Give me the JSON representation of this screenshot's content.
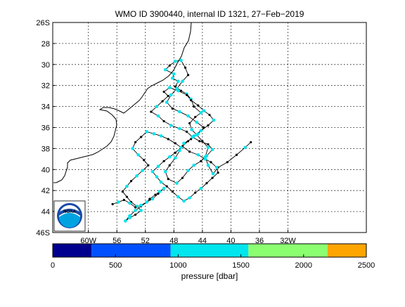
{
  "chart_data": {
    "type": "scatter",
    "title": "WMO ID 3900440, internal ID 1321, 27−Feb−2019",
    "xlim": [
      -65,
      -21
    ],
    "ylim": [
      -46,
      -26
    ],
    "grid": true,
    "x_tick_values": [
      -60,
      -56,
      -52,
      -48,
      -44,
      -40,
      -36,
      -32
    ],
    "x_tick_labels": [
      "60W",
      "56",
      "52",
      "48",
      "44",
      "40",
      "36",
      "32W"
    ],
    "y_tick_values": [
      -26,
      -28,
      -30,
      -32,
      -34,
      -36,
      -38,
      -40,
      -42,
      -44,
      -46
    ],
    "y_tick_labels": [
      "26S",
      "28",
      "30",
      "32",
      "34",
      "36",
      "38",
      "40",
      "42",
      "44",
      "46S"
    ],
    "colors": {
      "track_line": "#000000",
      "coast_line": "#000000",
      "grid": "#000000",
      "profile_fill": "#00e5ee"
    },
    "logo": {
      "text": "NOAA",
      "outer": "#1a4aa8",
      "inner": "#00a3e0"
    },
    "track": {
      "lon": [
        -37.2,
        -38.0,
        -39.2,
        -40.5,
        -41.8,
        -42.5,
        -43.2,
        -43.6,
        -43.2,
        -44.0,
        -44.8,
        -45.5,
        -45.8,
        -45.0,
        -44.2,
        -45.2,
        -45.6,
        -46.2,
        -47.0,
        -47.8,
        -47.4,
        -48.2,
        -48.0,
        -49.2,
        -48.6,
        -47.8,
        -47.0,
        -46.4,
        -46.0,
        -46.8,
        -47.6,
        -48.4,
        -49.0,
        -48.2,
        -47.2,
        -46.0,
        -44.8,
        -43.8,
        -44.6,
        -45.6,
        -46.6,
        -47.2,
        -47.8,
        -48.6,
        -49.2,
        -48.8,
        -47.6,
        -46.8,
        -46.0,
        -45.2,
        -44.2,
        -43.4,
        -42.6,
        -43.2,
        -44.4,
        -45.4,
        -46.2,
        -47.2,
        -48.4,
        -49.4,
        -50.2,
        -51.2,
        -50.4,
        -49.6,
        -48.8,
        -49.4,
        -48.6,
        -47.4,
        -46.2,
        -45.6,
        -44.6,
        -43.8,
        -43.0,
        -42.4,
        -43.2,
        -44.2,
        -45.2,
        -46.0,
        -46.8,
        -45.8,
        -44.6,
        -43.6,
        -42.8,
        -42.0,
        -41.8,
        -42.6,
        -43.4,
        -44.2,
        -45.0,
        -45.8,
        -46.6,
        -47.4,
        -48.2,
        -49.0,
        -49.8,
        -50.4,
        -51.0,
        -50.2,
        -49.4,
        -48.6,
        -47.8,
        -47.0,
        -47.8,
        -48.8,
        -49.8,
        -50.8,
        -51.8,
        -52.6,
        -53.4,
        -53.8,
        -53.0,
        -52.2,
        -51.6,
        -52.4,
        -53.2,
        -54.0,
        -54.6,
        -55.2,
        -54.6,
        -54.0,
        -53.2,
        -52.6,
        -53.4,
        -54.2,
        -54.8,
        -54.2,
        -53.4,
        -52.6,
        -51.8,
        -51.4,
        -50.6,
        -50.0,
        -49.4,
        -50.2,
        -51.0,
        -51.8,
        -52.6,
        -53.4,
        -54.2,
        -55.0,
        -55.8,
        -56.6
      ],
      "lat": [
        -37.4,
        -37.9,
        -38.6,
        -39.3,
        -39.8,
        -40.4,
        -39.6,
        -38.8,
        -37.9,
        -37.3,
        -36.7,
        -36.2,
        -35.6,
        -35.0,
        -34.6,
        -34.0,
        -33.3,
        -32.8,
        -32.5,
        -32.1,
        -31.6,
        -31.3,
        -30.9,
        -30.5,
        -30.1,
        -29.7,
        -29.6,
        -30.3,
        -31.0,
        -31.6,
        -32.3,
        -32.9,
        -33.6,
        -34.2,
        -34.5,
        -34.9,
        -35.5,
        -36.0,
        -36.6,
        -37.1,
        -37.5,
        -38.2,
        -38.9,
        -39.6,
        -40.2,
        -40.9,
        -41.3,
        -40.8,
        -40.1,
        -39.6,
        -39.2,
        -38.7,
        -38.1,
        -37.6,
        -37.3,
        -36.9,
        -36.4,
        -36.1,
        -35.8,
        -35.4,
        -34.9,
        -34.5,
        -34.0,
        -33.5,
        -33.0,
        -32.6,
        -32.2,
        -32.5,
        -32.9,
        -33.4,
        -33.9,
        -34.4,
        -34.8,
        -35.3,
        -35.8,
        -36.3,
        -36.8,
        -37.3,
        -37.8,
        -38.3,
        -38.6,
        -39.0,
        -39.3,
        -39.8,
        -40.3,
        -40.8,
        -41.3,
        -41.8,
        -42.2,
        -42.7,
        -43.0,
        -42.6,
        -42.1,
        -41.6,
        -41.2,
        -40.7,
        -40.2,
        -39.7,
        -39.2,
        -38.8,
        -38.4,
        -37.9,
        -37.5,
        -37.1,
        -36.8,
        -36.6,
        -36.4,
        -36.9,
        -37.4,
        -38.0,
        -38.6,
        -39.1,
        -39.6,
        -40.1,
        -40.6,
        -41.1,
        -41.6,
        -42.1,
        -42.6,
        -43.1,
        -43.5,
        -43.9,
        -44.3,
        -44.6,
        -44.9,
        -44.4,
        -43.9,
        -43.5,
        -43.1,
        -42.8,
        -42.4,
        -42.1,
        -41.8,
        -42.3,
        -42.8,
        -43.1,
        -43.4,
        -43.6,
        -43.2,
        -42.9,
        -43.1,
        -43.3
      ],
      "pressure": [
        0,
        1200,
        0,
        0,
        0,
        1200,
        1200,
        1200,
        1200,
        0,
        1200,
        1200,
        0,
        0,
        1200,
        0,
        1200,
        1200,
        0,
        0,
        1200,
        1200,
        1200,
        1200,
        0,
        1200,
        1200,
        0,
        0,
        1200,
        1200,
        1200,
        1200,
        0,
        1200,
        1200,
        1200,
        0,
        1200,
        0,
        1200,
        1200,
        1200,
        0,
        1200,
        0,
        1200,
        0,
        1200,
        1200,
        0,
        1200,
        1200,
        0,
        0,
        1200,
        0,
        1200,
        1200,
        0,
        1200,
        0,
        1200,
        0,
        0,
        0,
        1200,
        1200,
        0,
        0,
        0,
        1200,
        0,
        1200,
        0,
        1200,
        1200,
        0,
        0,
        0,
        1200,
        1200,
        0,
        1200,
        0,
        0,
        0,
        1200,
        0,
        1200,
        1200,
        1200,
        0,
        0,
        1200,
        1200,
        1200,
        1200,
        0,
        1200,
        0,
        1200,
        0,
        0,
        1200,
        1200,
        1200,
        0,
        0,
        1200,
        1200,
        0,
        0,
        1200,
        1200,
        0,
        1200,
        0,
        0,
        0,
        1200,
        1200,
        0,
        1200,
        1200,
        1200,
        1200,
        0,
        0,
        0,
        0,
        1200,
        1200,
        0,
        1200,
        1200,
        1200,
        0,
        1200,
        0,
        1200,
        0,
        1200
      ]
    },
    "colorbar": {
      "label": "pressure [dbar]",
      "tick_values": [
        0,
        500,
        1000,
        1500,
        2000,
        2500
      ],
      "tick_labels": [
        "0",
        "500",
        "1000",
        "1500",
        "2000",
        "2500"
      ],
      "lim": [
        0,
        2500
      ],
      "bands": [
        {
          "from": 0,
          "to": 310,
          "color": "#00008f"
        },
        {
          "from": 310,
          "to": 940,
          "color": "#0050ff"
        },
        {
          "from": 940,
          "to": 1560,
          "color": "#00e5ee"
        },
        {
          "from": 1560,
          "to": 2190,
          "color": "#8cff70"
        },
        {
          "from": 2190,
          "to": 2500,
          "color": "#ffa500"
        }
      ]
    }
  }
}
